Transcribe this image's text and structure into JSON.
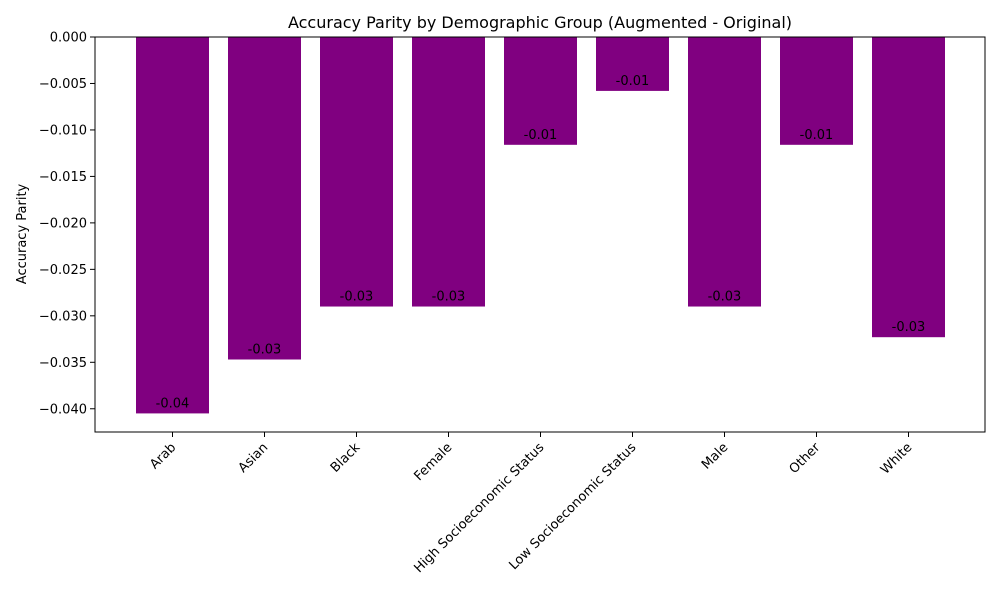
{
  "chart_data": {
    "type": "bar",
    "title": "Accuracy Parity by Demographic Group (Augmented - Original)",
    "xlabel": "",
    "ylabel": "Accuracy Parity",
    "categories": [
      "Arab",
      "Asian",
      "Black",
      "Female",
      "High Socioeconomic Status",
      "Low Socioeconomic Status",
      "Male",
      "Other",
      "White"
    ],
    "values": [
      -0.0405,
      -0.0347,
      -0.029,
      -0.029,
      -0.0116,
      -0.0058,
      -0.029,
      -0.0116,
      -0.0323
    ],
    "data_labels": [
      "-0.04",
      "-0.03",
      "-0.03",
      "-0.03",
      "-0.01",
      "-0.01",
      "-0.03",
      "-0.01",
      "-0.03"
    ],
    "yticks": [
      "0.000",
      "−0.005",
      "−0.010",
      "−0.015",
      "−0.020",
      "−0.025",
      "−0.030",
      "−0.035",
      "−0.040"
    ],
    "ylim": [
      -0.0425,
      0.0
    ],
    "grid": false,
    "bar_color": "#800080"
  }
}
